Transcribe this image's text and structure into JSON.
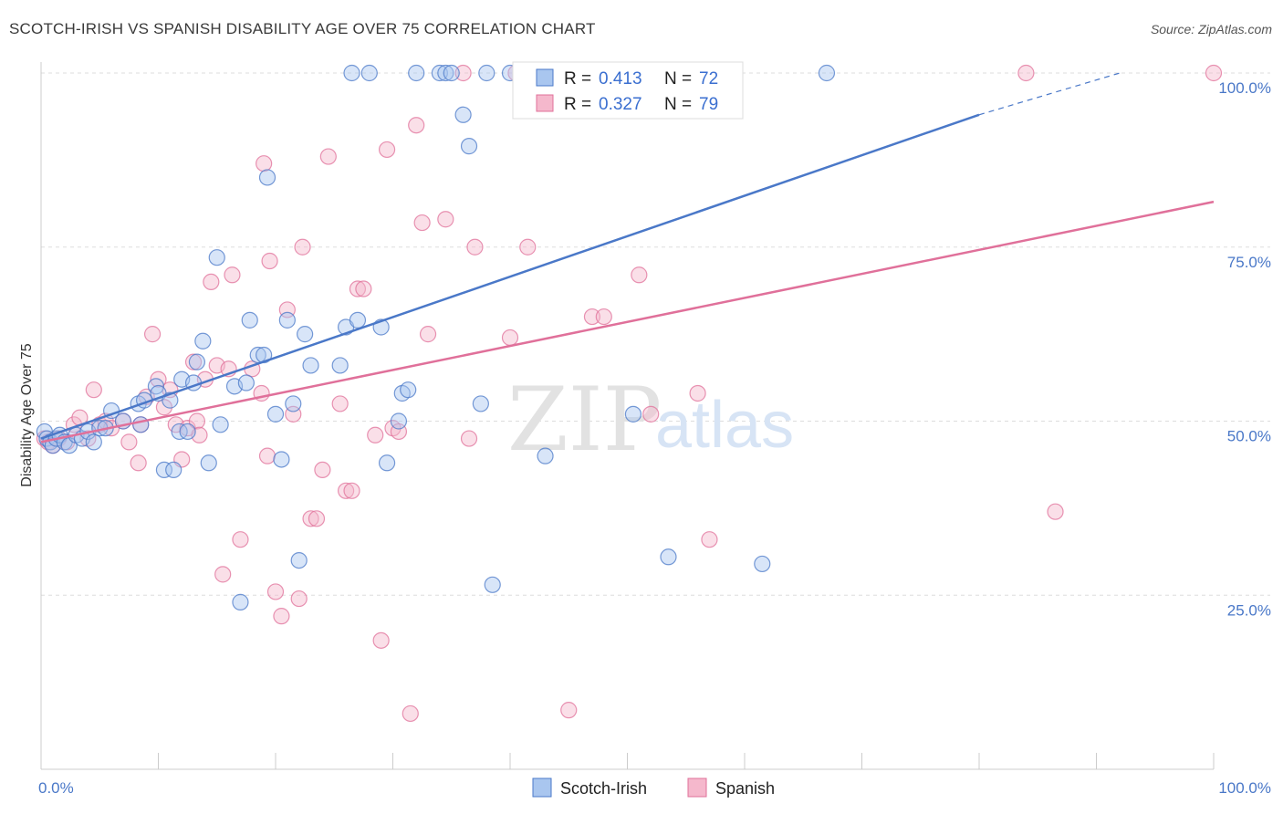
{
  "title": "SCOTCH-IRISH VS SPANISH DISABILITY AGE OVER 75 CORRELATION CHART",
  "source": "Source: ZipAtlas.com",
  "watermark": {
    "zip": "ZIP",
    "atlas": "atlas"
  },
  "colors": {
    "blue": "#4a78c8",
    "blue_fill": "#a9c6ef",
    "pink": "#e0709a",
    "pink_fill": "#f5b8cc",
    "grid": "#dddddd"
  },
  "chart_data": {
    "type": "scatter",
    "title": "SCOTCH-IRISH VS SPANISH DISABILITY AGE OVER 75 CORRELATION CHART",
    "xlabel": "",
    "ylabel": "Disability Age Over 75",
    "xlim": [
      0,
      100
    ],
    "ylim": [
      0,
      100
    ],
    "x_tick_labels": [
      "0.0%",
      "100.0%"
    ],
    "y_ticks": [
      25,
      50,
      75,
      100
    ],
    "y_tick_labels": [
      "25.0%",
      "50.0%",
      "75.0%",
      "100.0%"
    ],
    "grid": true,
    "legend_position": "top-center",
    "legend": [
      {
        "r_label": "R =",
        "r": "0.413",
        "n_label": "N =",
        "n": "72"
      },
      {
        "r_label": "R =",
        "r": "0.327",
        "n_label": "N =",
        "n": "79"
      }
    ],
    "series": [
      {
        "name": "Scotch-Irish",
        "color": "#4a78c8",
        "trend": {
          "x0": 0,
          "y0": 47.5,
          "x1": 80,
          "y1": 94,
          "dashed_to_x": 92,
          "dashed_to_y": 100
        },
        "points": [
          [
            0.3,
            48.5
          ],
          [
            0.5,
            47.5
          ],
          [
            0.8,
            47
          ],
          [
            1,
            46.5
          ],
          [
            1.3,
            47.5
          ],
          [
            1.6,
            48
          ],
          [
            2,
            47
          ],
          [
            2.4,
            46.5
          ],
          [
            3,
            48
          ],
          [
            3.5,
            47.5
          ],
          [
            4,
            48.5
          ],
          [
            4.5,
            47
          ],
          [
            5,
            49
          ],
          [
            5.5,
            49
          ],
          [
            6,
            51.5
          ],
          [
            7,
            50
          ],
          [
            8.3,
            52.5
          ],
          [
            8.5,
            49.5
          ],
          [
            8.8,
            53
          ],
          [
            9.8,
            55
          ],
          [
            10,
            54
          ],
          [
            10.5,
            43
          ],
          [
            11,
            53
          ],
          [
            11.3,
            43
          ],
          [
            11.8,
            48.5
          ],
          [
            12,
            56
          ],
          [
            12.5,
            48.5
          ],
          [
            13,
            55.5
          ],
          [
            13.3,
            58.5
          ],
          [
            13.8,
            61.5
          ],
          [
            14.3,
            44
          ],
          [
            15,
            73.5
          ],
          [
            15.3,
            49.5
          ],
          [
            16.5,
            55
          ],
          [
            17,
            24
          ],
          [
            17.5,
            55.5
          ],
          [
            17.8,
            64.5
          ],
          [
            18.5,
            59.5
          ],
          [
            19,
            59.5
          ],
          [
            19.3,
            85
          ],
          [
            20,
            51
          ],
          [
            20.5,
            44.5
          ],
          [
            21,
            64.5
          ],
          [
            21.5,
            52.5
          ],
          [
            22,
            30
          ],
          [
            22.5,
            62.5
          ],
          [
            23,
            58
          ],
          [
            25.5,
            58
          ],
          [
            26,
            63.5
          ],
          [
            26.5,
            100
          ],
          [
            27,
            64.5
          ],
          [
            28,
            100
          ],
          [
            29,
            63.5
          ],
          [
            29.5,
            44
          ],
          [
            30.5,
            50
          ],
          [
            30.8,
            54
          ],
          [
            31.3,
            54.5
          ],
          [
            32,
            100
          ],
          [
            34,
            100
          ],
          [
            34.5,
            100
          ],
          [
            35,
            100
          ],
          [
            36,
            94
          ],
          [
            36.5,
            89.5
          ],
          [
            37.5,
            52.5
          ],
          [
            38,
            100
          ],
          [
            38.5,
            26.5
          ],
          [
            40,
            100
          ],
          [
            43,
            45
          ],
          [
            45.5,
            100
          ],
          [
            50.5,
            51
          ],
          [
            53.5,
            30.5
          ],
          [
            61.5,
            29.5
          ],
          [
            67,
            100
          ]
        ]
      },
      {
        "name": "Spanish",
        "color": "#e0709a",
        "trend": {
          "x0": 0,
          "y0": 47,
          "x1": 100,
          "y1": 81.5
        },
        "points": [
          [
            0.3,
            47.5
          ],
          [
            0.6,
            47
          ],
          [
            1,
            46.5
          ],
          [
            1.5,
            47.5
          ],
          [
            2.2,
            47
          ],
          [
            2.8,
            49.5
          ],
          [
            3.3,
            50.5
          ],
          [
            4,
            47.5
          ],
          [
            4.5,
            54.5
          ],
          [
            5,
            49.5
          ],
          [
            5.5,
            50
          ],
          [
            6,
            49
          ],
          [
            7,
            50
          ],
          [
            7.5,
            47
          ],
          [
            8.3,
            44
          ],
          [
            8.5,
            49.5
          ],
          [
            9,
            53.5
          ],
          [
            9.5,
            62.5
          ],
          [
            10,
            56
          ],
          [
            10.5,
            52
          ],
          [
            11,
            54.5
          ],
          [
            11.5,
            49.5
          ],
          [
            12,
            44.5
          ],
          [
            12.5,
            49
          ],
          [
            13,
            58.5
          ],
          [
            13.3,
            50
          ],
          [
            13.5,
            48
          ],
          [
            14,
            56
          ],
          [
            14.5,
            70
          ],
          [
            15,
            58
          ],
          [
            15.5,
            28
          ],
          [
            16,
            57.5
          ],
          [
            16.3,
            71
          ],
          [
            17,
            33
          ],
          [
            18,
            57.5
          ],
          [
            18.8,
            54
          ],
          [
            19,
            87
          ],
          [
            19.3,
            45
          ],
          [
            19.5,
            73
          ],
          [
            20,
            25.5
          ],
          [
            20.5,
            22
          ],
          [
            21,
            66
          ],
          [
            21.5,
            51
          ],
          [
            22,
            24.5
          ],
          [
            22.3,
            75
          ],
          [
            23,
            36
          ],
          [
            23.5,
            36
          ],
          [
            24,
            43
          ],
          [
            24.5,
            88
          ],
          [
            25.5,
            52.5
          ],
          [
            26,
            40
          ],
          [
            26.5,
            40
          ],
          [
            27,
            69
          ],
          [
            27.5,
            69
          ],
          [
            28.5,
            48
          ],
          [
            29,
            18.5
          ],
          [
            29.5,
            89
          ],
          [
            30,
            49
          ],
          [
            30.5,
            48.5
          ],
          [
            31.5,
            8
          ],
          [
            32,
            92.5
          ],
          [
            32.5,
            78.5
          ],
          [
            33,
            62.5
          ],
          [
            34.5,
            79
          ],
          [
            36,
            100
          ],
          [
            36.5,
            47.5
          ],
          [
            37,
            75
          ],
          [
            40,
            62
          ],
          [
            40.5,
            100
          ],
          [
            41.5,
            75
          ],
          [
            45,
            8.5
          ],
          [
            47,
            65
          ],
          [
            48,
            65
          ],
          [
            51,
            71
          ],
          [
            52,
            51
          ],
          [
            56,
            54
          ],
          [
            57,
            33
          ],
          [
            84,
            100
          ],
          [
            86.5,
            37
          ],
          [
            100,
            100
          ]
        ]
      }
    ]
  }
}
